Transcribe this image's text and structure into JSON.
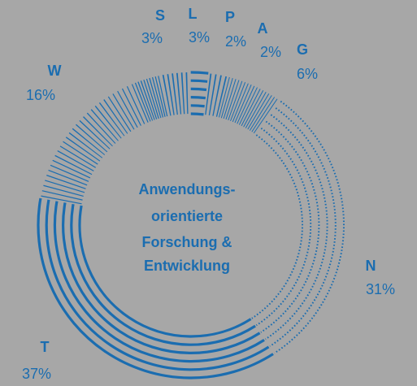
{
  "chart_data": {
    "type": "pie",
    "center_label": [
      "Anwendungs-",
      "orientierte",
      "Forschung &",
      "Entwicklung"
    ],
    "categories": [
      "S",
      "L",
      "P",
      "A",
      "G",
      "N",
      "T",
      "W"
    ],
    "values": [
      3,
      3,
      2,
      2,
      6,
      31,
      37,
      16
    ],
    "value_labels": [
      "3%",
      "3%",
      "2%",
      "2%",
      "6%",
      "31%",
      "37%",
      "16%"
    ],
    "color": "#1b6db0"
  }
}
